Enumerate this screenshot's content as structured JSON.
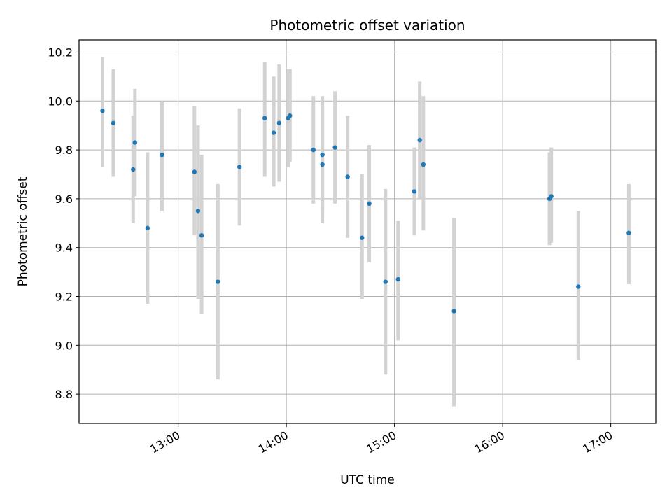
{
  "chart_data": {
    "type": "scatter",
    "title": "Photometric offset variation",
    "xlabel": "UTC time",
    "ylabel": "Photometric offset",
    "x_unit": "UTC time (hours)",
    "xlim": [
      "12:05",
      "17:25"
    ],
    "ylim": [
      8.68,
      10.25
    ],
    "x_ticks": [
      "13:00",
      "14:00",
      "15:00",
      "16:00",
      "17:00"
    ],
    "y_ticks": [
      "8.8",
      "9.0",
      "9.2",
      "9.4",
      "9.6",
      "9.8",
      "10.0",
      "10.2"
    ],
    "grid": true,
    "marker_color": "#1f77b4",
    "errorbar_color": "#d3d3d3",
    "points": [
      {
        "x": "12:18",
        "y": 9.96,
        "low": 9.73,
        "high": 10.18
      },
      {
        "x": "12:24",
        "y": 9.91,
        "low": 9.69,
        "high": 10.13
      },
      {
        "x": "12:35",
        "y": 9.72,
        "low": 9.5,
        "high": 9.94
      },
      {
        "x": "12:36",
        "y": 9.83,
        "low": 9.61,
        "high": 10.05
      },
      {
        "x": "12:43",
        "y": 9.48,
        "low": 9.17,
        "high": 9.79
      },
      {
        "x": "12:51",
        "y": 9.78,
        "low": 9.55,
        "high": 10.0
      },
      {
        "x": "13:09",
        "y": 9.71,
        "low": 9.45,
        "high": 9.98
      },
      {
        "x": "13:11",
        "y": 9.55,
        "low": 9.19,
        "high": 9.9
      },
      {
        "x": "13:13",
        "y": 9.45,
        "low": 9.13,
        "high": 9.78
      },
      {
        "x": "13:22",
        "y": 9.26,
        "low": 8.86,
        "high": 9.66
      },
      {
        "x": "13:34",
        "y": 9.73,
        "low": 9.49,
        "high": 9.97
      },
      {
        "x": "13:48",
        "y": 9.93,
        "low": 9.69,
        "high": 10.16
      },
      {
        "x": "13:53",
        "y": 9.87,
        "low": 9.65,
        "high": 10.1
      },
      {
        "x": "13:56",
        "y": 9.91,
        "low": 9.67,
        "high": 10.15
      },
      {
        "x": "14:01",
        "y": 9.93,
        "low": 9.73,
        "high": 10.13
      },
      {
        "x": "14:02",
        "y": 9.94,
        "low": 9.75,
        "high": 10.13
      },
      {
        "x": "14:15",
        "y": 9.8,
        "low": 9.58,
        "high": 10.02
      },
      {
        "x": "14:20",
        "y": 9.78,
        "low": 9.55,
        "high": 10.02
      },
      {
        "x": "14:20",
        "y": 9.74,
        "low": 9.5,
        "high": 9.98
      },
      {
        "x": "14:27",
        "y": 9.81,
        "low": 9.58,
        "high": 10.04
      },
      {
        "x": "14:34",
        "y": 9.69,
        "low": 9.44,
        "high": 9.94
      },
      {
        "x": "14:42",
        "y": 9.44,
        "low": 9.19,
        "high": 9.7
      },
      {
        "x": "14:46",
        "y": 9.58,
        "low": 9.34,
        "high": 9.82
      },
      {
        "x": "14:55",
        "y": 9.26,
        "low": 8.88,
        "high": 9.64
      },
      {
        "x": "15:02",
        "y": 9.27,
        "low": 9.02,
        "high": 9.51
      },
      {
        "x": "15:11",
        "y": 9.63,
        "low": 9.45,
        "high": 9.81
      },
      {
        "x": "15:14",
        "y": 9.84,
        "low": 9.6,
        "high": 10.08
      },
      {
        "x": "15:16",
        "y": 9.74,
        "low": 9.47,
        "high": 10.02
      },
      {
        "x": "15:33",
        "y": 9.14,
        "low": 8.75,
        "high": 9.52
      },
      {
        "x": "16:26",
        "y": 9.6,
        "low": 9.41,
        "high": 9.79
      },
      {
        "x": "16:27",
        "y": 9.61,
        "low": 9.42,
        "high": 9.81
      },
      {
        "x": "16:42",
        "y": 9.24,
        "low": 8.94,
        "high": 9.55
      },
      {
        "x": "17:10",
        "y": 9.46,
        "low": 9.25,
        "high": 9.66
      }
    ]
  }
}
